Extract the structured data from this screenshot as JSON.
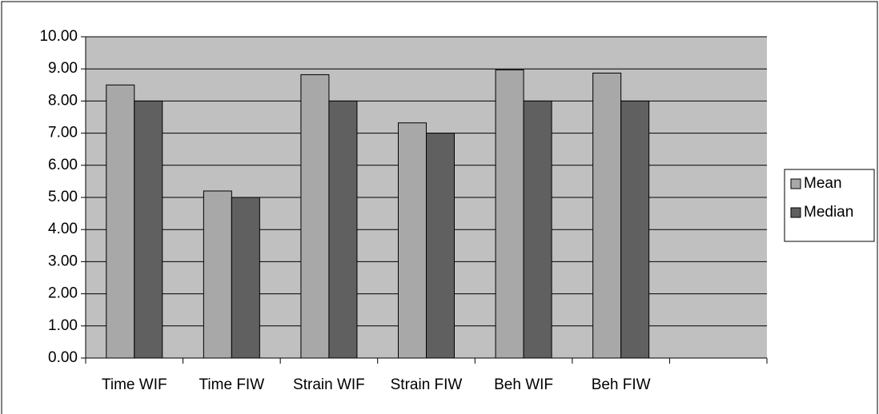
{
  "chart_data": {
    "type": "bar",
    "categories": [
      "Time WIF",
      "Time FIW",
      "Strain WIF",
      "Strain FIW",
      "Beh WIF",
      "Beh FIW",
      null
    ],
    "series": [
      {
        "name": "Mean",
        "color": "#a8a8a8",
        "values": [
          8.5,
          5.2,
          8.82,
          7.32,
          8.97,
          8.87,
          null
        ]
      },
      {
        "name": "Median",
        "color": "#606060",
        "values": [
          8,
          5,
          8,
          7,
          8,
          8,
          null
        ]
      }
    ],
    "ylim": [
      0,
      10
    ],
    "yticks": [
      {
        "value": 0,
        "label": "0.00"
      },
      {
        "value": 1,
        "label": "1.00"
      },
      {
        "value": 2,
        "label": "2.00"
      },
      {
        "value": 3,
        "label": "3.00"
      },
      {
        "value": 4,
        "label": "4.00"
      },
      {
        "value": 5,
        "label": "5.00"
      },
      {
        "value": 6,
        "label": "6.00"
      },
      {
        "value": 7,
        "label": "7.00"
      },
      {
        "value": 8,
        "label": "8.00"
      },
      {
        "value": 9,
        "label": "9.00"
      },
      {
        "value": 10,
        "label": "10.00"
      }
    ],
    "grid": true,
    "legend": "right",
    "plot_background": "#c0c0c0"
  }
}
